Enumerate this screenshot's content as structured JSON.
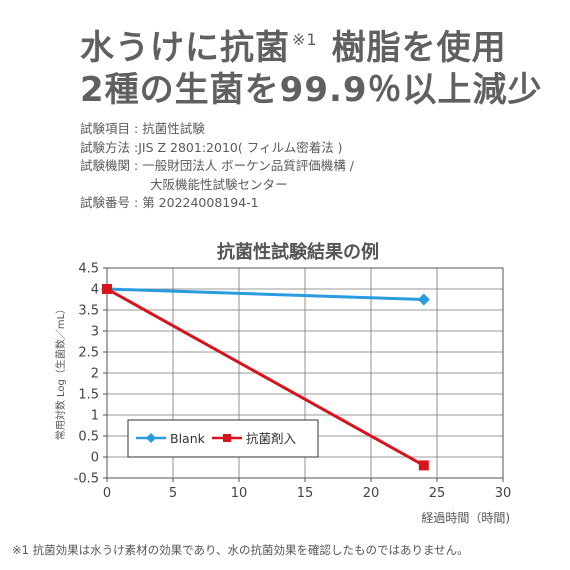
{
  "headline": {
    "line1_main": "水うけに抗菌",
    "line1_mark": "※1",
    "line1_rest": "樹脂を使用",
    "line2": "2種の生菌を99.9％以上減少"
  },
  "test_info": [
    {
      "label": "試験項目",
      "value": "抗菌性試験"
    },
    {
      "label": "試験方法",
      "value": "JIS Z 2801:2010( フィルム密着法 )"
    },
    {
      "label": "試験機関",
      "value": "一般財団法人 ボーケン品質評価機構 /"
    },
    {
      "label": "",
      "value": "大阪機能性試験センター"
    },
    {
      "label": "試験番号",
      "value": "第 20224008194-1"
    }
  ],
  "chart_data": {
    "type": "line",
    "title": "抗菌性試験結果の例",
    "xlabel": "経過時間（時間)",
    "ylabel": "常用対数 Log（生菌数／mL）",
    "xlim": [
      0,
      30
    ],
    "ylim": [
      -0.5,
      4.5
    ],
    "x_ticks": [
      "0",
      "5",
      "10",
      "15",
      "20",
      "25",
      "30"
    ],
    "y_ticks": [
      "4.5",
      "4",
      "3.5",
      "3",
      "2.5",
      "2",
      "1.5",
      "1",
      "0.5",
      "0",
      "-0.5"
    ],
    "grid": true,
    "legend_position": "lower-left",
    "series": [
      {
        "name": "Blank",
        "color": "#2b9be0",
        "marker": "diamond",
        "x": [
          0,
          24
        ],
        "y": [
          4.0,
          3.75
        ]
      },
      {
        "name": "抗菌剤入",
        "color": "#d7141e",
        "marker": "square",
        "x": [
          0,
          24
        ],
        "y": [
          4.0,
          -0.2
        ]
      }
    ]
  },
  "footnote": "※1 抗菌効果は水うけ素材の効果であり、水の抗菌効果を確認したものではありません。"
}
